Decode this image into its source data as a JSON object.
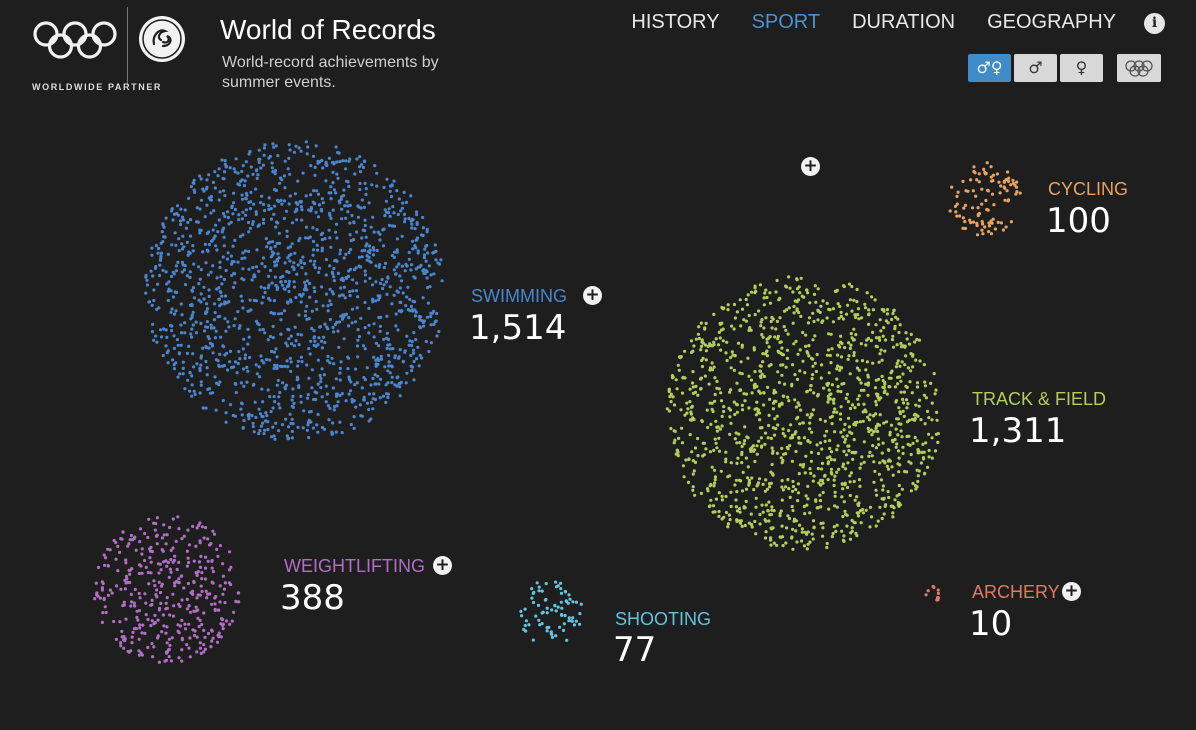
{
  "header": {
    "partner_label": "WORLDWIDE PARTNER",
    "title": "World of Records",
    "subtitle": "World-record achievements by summer events.",
    "info_icon": "i"
  },
  "nav": {
    "items": [
      {
        "label": "HISTORY",
        "active": false
      },
      {
        "label": "SPORT",
        "active": true
      },
      {
        "label": "DURATION",
        "active": false
      },
      {
        "label": "GEOGRAPHY",
        "active": false
      }
    ]
  },
  "filters": [
    {
      "label": "♂♀",
      "name": "all-genders",
      "active": true
    },
    {
      "label": "♂",
      "name": "men",
      "active": false
    },
    {
      "label": "♀",
      "name": "women",
      "active": false
    }
  ],
  "colors": {
    "background": "#1e1e1e",
    "swimming": "#4a86cf",
    "track_field": "#b3cf5a",
    "cycling": "#e8a45d",
    "weightlifting": "#b06ec4",
    "shooting": "#64c3e0",
    "archery": "#e27a5f",
    "nav_active": "#4a93d0"
  },
  "sports": [
    {
      "key": "swimming",
      "label": "SWIMMING",
      "count": "1,514",
      "value": 1514,
      "color": "#4a86cf",
      "expand_icon": "plus-icon"
    },
    {
      "key": "track_field",
      "label": "TRACK & FIELD",
      "count": "1,311",
      "value": 1311,
      "color": "#b3cf5a"
    },
    {
      "key": "cycling",
      "label": "CYCLING",
      "count": "100",
      "value": 100,
      "color": "#e8a45d"
    },
    {
      "key": "weightlifting",
      "label": "WEIGHTLIFTING",
      "count": "388",
      "value": 388,
      "color": "#b06ec4",
      "expand_icon": "plus-icon"
    },
    {
      "key": "shooting",
      "label": "SHOOTING",
      "count": "77",
      "value": 77,
      "color": "#64c3e0"
    },
    {
      "key": "archery",
      "label": "ARCHERY",
      "count": "10",
      "value": 10,
      "color": "#e27a5f",
      "expand_icon": "plus-icon"
    }
  ],
  "floating_plus_icon": "plus-icon"
}
